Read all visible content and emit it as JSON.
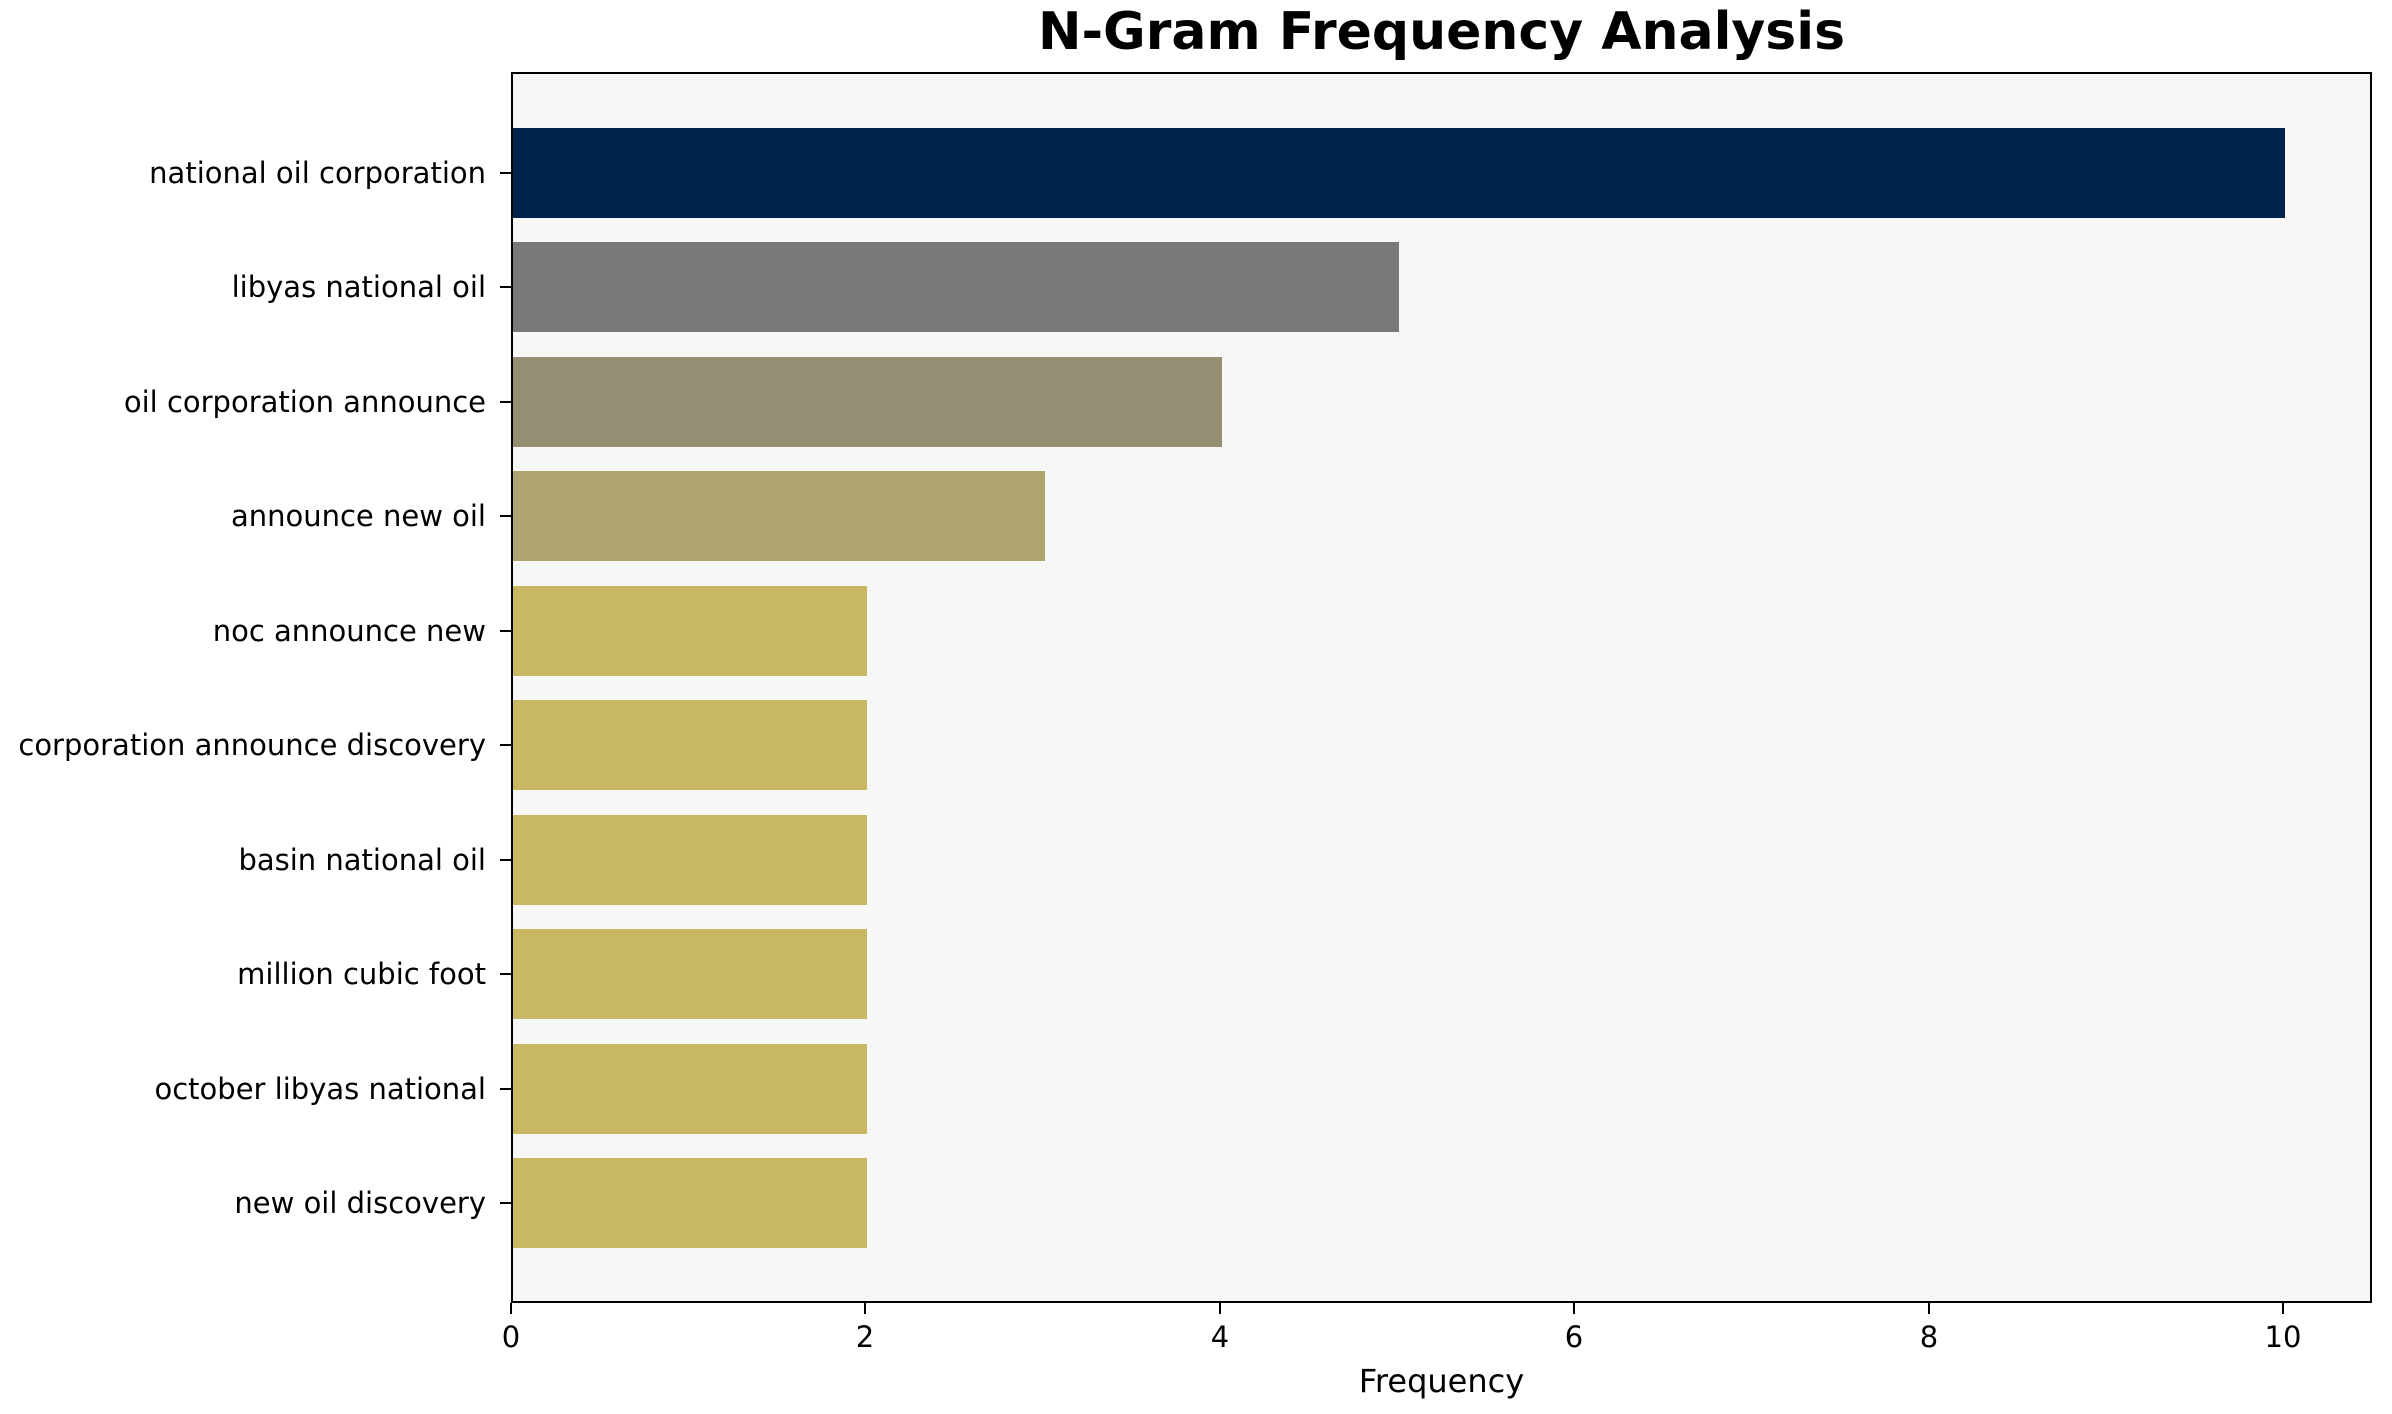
{
  "title": "N-Gram Frequency Analysis",
  "colors": {
    "figure_bg": "#ffffff",
    "plot_bg": "#f7f7f5",
    "spine": "#000000",
    "text": "#000000"
  },
  "chart_data": {
    "type": "bar",
    "orientation": "horizontal",
    "title": "N-Gram Frequency Analysis",
    "categories": [
      "national oil corporation",
      "libyas national oil",
      "oil corporation announce",
      "announce new oil",
      "noc announce new",
      "corporation announce discovery",
      "basin national oil",
      "million cubic foot",
      "october libyas national",
      "new oil discovery"
    ],
    "values": [
      10,
      5,
      4,
      3,
      2,
      2,
      2,
      2,
      2,
      2
    ],
    "bar_colors": [
      "#00234e",
      "#7a7977",
      "#948f73",
      "#ada46f",
      "#c8b763",
      "#c8b763",
      "#c8b763",
      "#c8b763",
      "#c8b763",
      "#c8b763"
    ],
    "xlabel": "Frequency",
    "ylabel": "",
    "xlim": [
      0,
      10.5
    ],
    "x_ticks": [
      0,
      2,
      4,
      6,
      8,
      10
    ],
    "grid": false,
    "legend": null,
    "plot_bg": "#f7f7f5"
  }
}
